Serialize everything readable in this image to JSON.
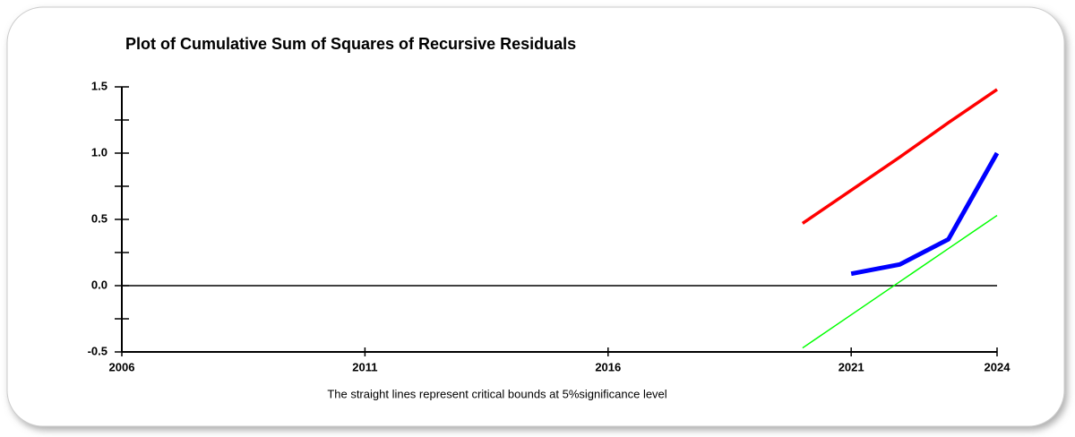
{
  "chart_data": {
    "type": "line",
    "title": "Plot of Cumulative Sum of Squares of Recursive Residuals",
    "footnote": "The straight lines represent critical bounds at 5%significance level",
    "x": [
      2020,
      2021,
      2022,
      2023,
      2024
    ],
    "series": [
      {
        "color": "#ff0000",
        "values": [
          0.47,
          0.72,
          0.97,
          1.23,
          1.48
        ]
      },
      {
        "color": "#00ff00",
        "values": [
          -0.47,
          -0.22,
          0.03,
          0.28,
          0.53
        ]
      },
      {
        "color": "#0000ff",
        "values": [
          null,
          0.09,
          0.16,
          0.35,
          1.0
        ]
      }
    ],
    "xlim": [
      2006,
      2024
    ],
    "xticks": [
      2006,
      2011,
      2016,
      2021,
      2024
    ],
    "ylim": [
      -0.5,
      1.5
    ],
    "yticks": [
      -0.5,
      {
        "value": 0,
        "label": "0.0"
      },
      0.5,
      {
        "value": 1,
        "label": "1.0"
      },
      1.5
    ],
    "yminorticks": [
      -0.25,
      0.25,
      0.75,
      1.25
    ]
  }
}
